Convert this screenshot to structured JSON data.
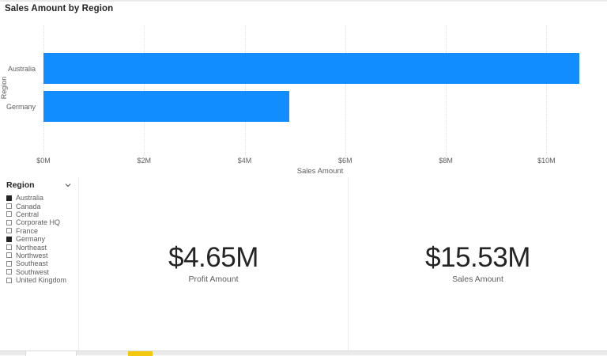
{
  "chart": {
    "title": "Sales Amount by Region",
    "x_axis_title": "Sales Amount",
    "y_axis_title": "Region"
  },
  "chart_data": {
    "type": "bar",
    "orientation": "horizontal",
    "title": "Sales Amount by Region",
    "categories": [
      "Australia",
      "Germany"
    ],
    "values": [
      10.65,
      4.88
    ],
    "unit": "USD millions",
    "xlabel": "Sales Amount",
    "ylabel": "Region",
    "xlim": [
      0,
      11
    ],
    "x_ticks": [
      {
        "value": 0,
        "label": "$0M"
      },
      {
        "value": 2,
        "label": "$2M"
      },
      {
        "value": 4,
        "label": "$4M"
      },
      {
        "value": 6,
        "label": "$6M"
      },
      {
        "value": 8,
        "label": "$8M"
      },
      {
        "value": 10,
        "label": "$10M"
      }
    ],
    "grid": "vertical-dotted",
    "legend": "none",
    "bar_color": "#118DFF"
  },
  "slicer": {
    "header": "Region",
    "chevron_icon": "chevron-down",
    "items": [
      {
        "label": "Australia",
        "checked": true
      },
      {
        "label": "Canada",
        "checked": false
      },
      {
        "label": "Central",
        "checked": false
      },
      {
        "label": "Corporate HQ",
        "checked": false
      },
      {
        "label": "France",
        "checked": false
      },
      {
        "label": "Germany",
        "checked": true
      },
      {
        "label": "Northeast",
        "checked": false
      },
      {
        "label": "Northwest",
        "checked": false
      },
      {
        "label": "Southeast",
        "checked": false
      },
      {
        "label": "Southwest",
        "checked": false
      },
      {
        "label": "United Kingdom",
        "checked": false
      }
    ]
  },
  "cards": [
    {
      "value": "$4.65M",
      "label": "Profit Amount"
    },
    {
      "value": "$15.53M",
      "label": "Sales Amount"
    }
  ],
  "colors": {
    "bar": "#118DFF",
    "text_dark": "#252423",
    "text_gray": "#605E5C",
    "page_tab_accent": "#F2C811"
  }
}
